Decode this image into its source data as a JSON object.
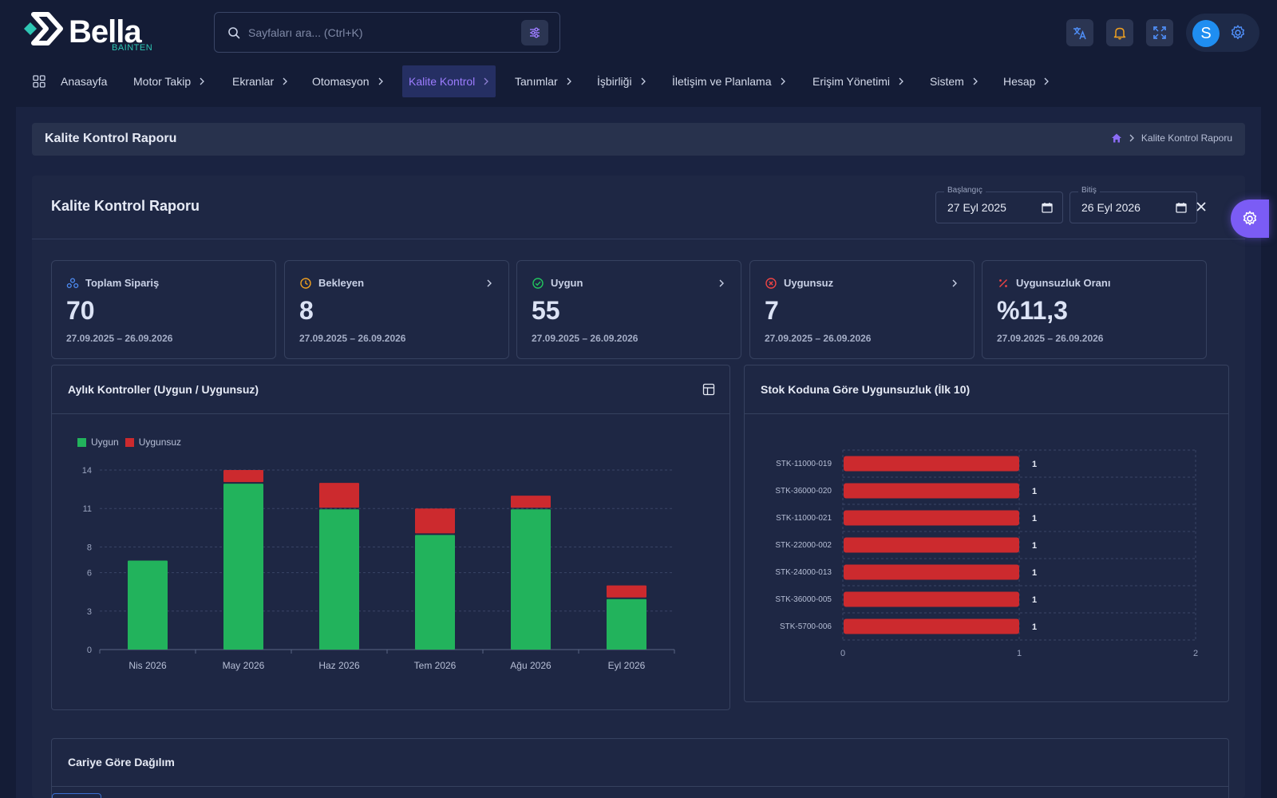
{
  "header": {
    "logo_text": "Bella",
    "logo_sub": "BAINTEN",
    "search_placeholder": "Sayfaları ara... (Ctrl+K)",
    "avatar_initial": "S"
  },
  "nav": {
    "items": [
      {
        "label": "Anasayfa"
      },
      {
        "label": "Motor Takip"
      },
      {
        "label": "Ekranlar"
      },
      {
        "label": "Otomasyon"
      },
      {
        "label": "Kalite Kontrol"
      },
      {
        "label": "Tanımlar"
      },
      {
        "label": "İşbirliği"
      },
      {
        "label": "İletişim ve Planlama"
      },
      {
        "label": "Erişim Yönetimi"
      },
      {
        "label": "Sistem"
      },
      {
        "label": "Hesap"
      }
    ],
    "active": "Kalite Kontrol"
  },
  "page": {
    "title": "Kalite Kontrol Raporu",
    "breadcrumb_current": "Kalite Kontrol Raporu"
  },
  "report": {
    "title": "Kalite Kontrol Raporu",
    "start_label": "Başlangıç",
    "start_value": "27 Eyl 2025",
    "end_label": "Bitiş",
    "end_value": "26 Eyl 2026"
  },
  "stats": [
    {
      "label": "Toplam Sipariş",
      "value": "70",
      "range": "27.09.2025 – 26.09.2026",
      "icon": "group-icon",
      "color": "#4f8ef7"
    },
    {
      "label": "Bekleyen",
      "value": "8",
      "range": "27.09.2025 – 26.09.2026",
      "icon": "clock-icon",
      "color": "#f0a020"
    },
    {
      "label": "Uygun",
      "value": "55",
      "range": "27.09.2025 – 26.09.2026",
      "icon": "check-circle-icon",
      "color": "#22c55e"
    },
    {
      "label": "Uygunsuz",
      "value": "7",
      "range": "27.09.2025 – 26.09.2026",
      "icon": "x-circle-icon",
      "color": "#ef4444"
    },
    {
      "label": "Uygunsuzluk Oranı",
      "value": "%11,3",
      "range": "27.09.2025 – 26.09.2026",
      "icon": "percent-icon",
      "color": "#ef4444"
    }
  ],
  "monthly_chart": {
    "title": "Aylık Kontroller (Uygun / Uygunsuz)",
    "legend": [
      "Uygun",
      "Uygunsuz"
    ],
    "colors": {
      "uygun": "#22b35c",
      "uygunsuz": "#cc2a2e"
    }
  },
  "stock_chart": {
    "title": "Stok Koduna Göre Uygunsuzluk (İlk 10)",
    "color": "#cc2a2e"
  },
  "bottom": {
    "title": "Cariye Göre Dağılım"
  },
  "chart_data": [
    {
      "type": "bar",
      "stacked": true,
      "categories": [
        "Nis 2026",
        "May 2026",
        "Haz 2026",
        "Tem 2026",
        "Ağu 2026",
        "Eyl 2026"
      ],
      "series": [
        {
          "name": "Uygun",
          "values": [
            7,
            13,
            11,
            9,
            11,
            4
          ]
        },
        {
          "name": "Uygunsuz",
          "values": [
            0,
            1,
            2,
            2,
            1,
            1
          ]
        }
      ],
      "yticks": [
        "0",
        "3",
        "6",
        "8",
        "11",
        "14"
      ],
      "ylim": [
        0,
        14
      ],
      "grid": true,
      "legend": "top-left"
    },
    {
      "type": "bar",
      "orientation": "horizontal",
      "categories": [
        "STK-11000-019",
        "STK-36000-020",
        "STK-11000-021",
        "STK-22000-002",
        "STK-24000-013",
        "STK-36000-005",
        "STK-5700-006"
      ],
      "values": [
        1,
        1,
        1,
        1,
        1,
        1,
        1
      ],
      "xticks": [
        "0",
        "1",
        "2"
      ],
      "xlim": [
        0,
        2
      ],
      "grid": true
    }
  ]
}
